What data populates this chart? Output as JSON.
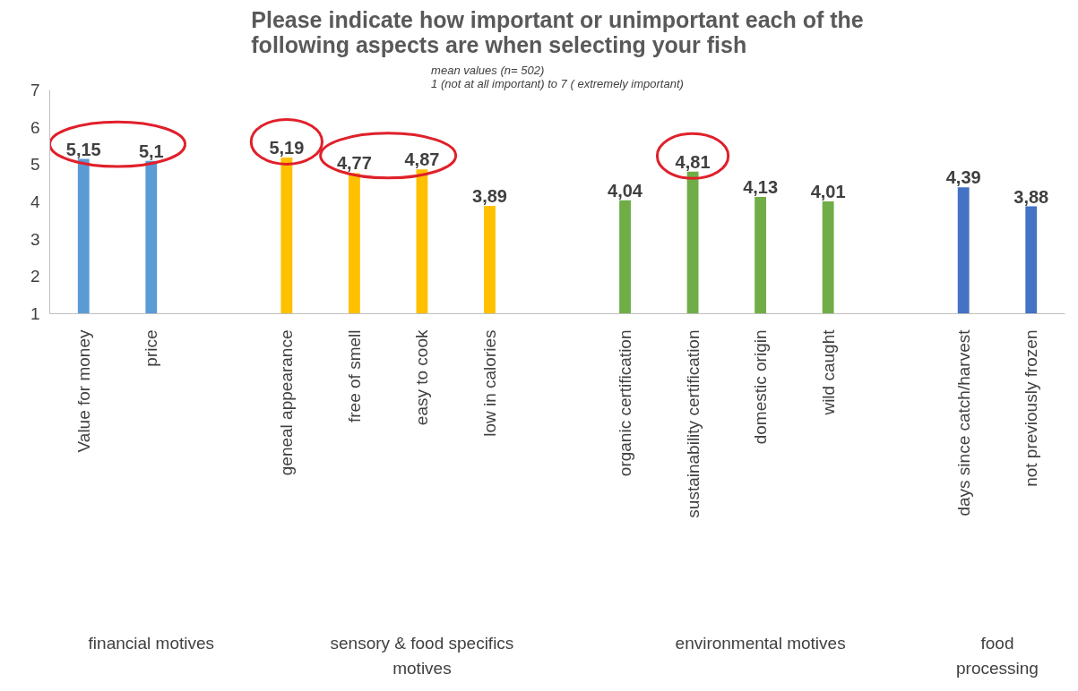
{
  "chart_data": {
    "type": "bar",
    "title": "Please indicate how important or unimportant each of the\nfollowing aspects are when selecting your fish",
    "subtitle": "mean values (n= 502)\n1 (not at all important) to 7 ( extremely important)",
    "categories": [
      "Value for money",
      "price",
      null,
      "geneal appearance",
      "free of smell",
      "easy to cook",
      "low in calories",
      null,
      "organic certification",
      "sustainability certification",
      "domestic origin",
      "wild caught",
      null,
      "days since catch/harvest",
      "not previously frozen"
    ],
    "values": [
      5.15,
      5.1,
      null,
      5.19,
      4.77,
      4.87,
      3.89,
      null,
      4.04,
      4.81,
      4.13,
      4.01,
      null,
      4.39,
      3.88
    ],
    "value_labels": [
      "5,15",
      "5,1",
      null,
      "5,19",
      "4,77",
      "4,87",
      "3,89",
      null,
      "4,04",
      "4,81",
      "4,13",
      "4,01",
      null,
      "4,39",
      "3,88"
    ],
    "colors": [
      "#5b9bd5",
      "#5b9bd5",
      null,
      "#ffc000",
      "#ffc000",
      "#ffc000",
      "#ffc000",
      null,
      "#70ad47",
      "#70ad47",
      "#70ad47",
      "#70ad47",
      null,
      "#4472c4",
      "#4472c4"
    ],
    "annotations": [
      "financial motives",
      "sensory & food specifics\nmotives",
      "environmental motives",
      "food\nprocessing"
    ],
    "ylim": [
      1,
      7
    ],
    "yticks": [
      1,
      2,
      3,
      4,
      5,
      6,
      7
    ],
    "grid": false
  }
}
